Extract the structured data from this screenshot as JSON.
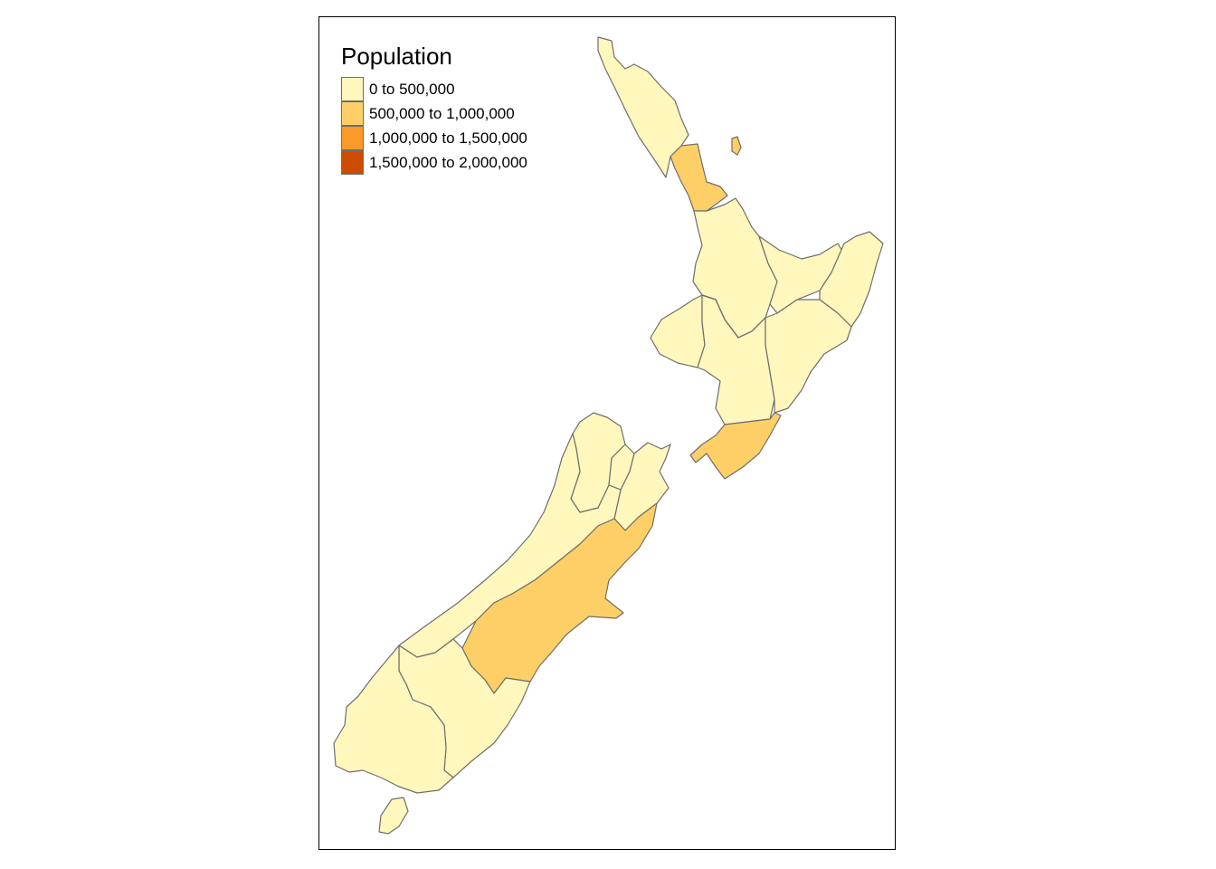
{
  "map": {
    "legend": {
      "title": "Population",
      "classes": [
        {
          "label": "0 to 500,000",
          "color": "#FFF7BC"
        },
        {
          "label": "500,000 to 1,000,000",
          "color": "#FECF66"
        },
        {
          "label": "1,000,000 to 1,500,000",
          "color": "#FB9A29"
        },
        {
          "label": "1,500,000 to 2,000,000",
          "color": "#CC4C02"
        }
      ]
    },
    "regions": [
      {
        "name": "Northland",
        "class": 0
      },
      {
        "name": "Auckland",
        "class": 3
      },
      {
        "name": "Waikato",
        "class": 0
      },
      {
        "name": "Bay of Plenty",
        "class": 0
      },
      {
        "name": "Gisborne",
        "class": 0
      },
      {
        "name": "Taranaki",
        "class": 0
      },
      {
        "name": "Manawatu-Wanganui",
        "class": 0
      },
      {
        "name": "Hawke's Bay",
        "class": 0
      },
      {
        "name": "Wellington",
        "class": 1
      },
      {
        "name": "Tasman",
        "class": 0
      },
      {
        "name": "Nelson",
        "class": 0
      },
      {
        "name": "Marlborough",
        "class": 0
      },
      {
        "name": "West Coast",
        "class": 0
      },
      {
        "name": "Canterbury",
        "class": 1
      },
      {
        "name": "Otago",
        "class": 0
      },
      {
        "name": "Southland",
        "class": 0
      }
    ]
  }
}
